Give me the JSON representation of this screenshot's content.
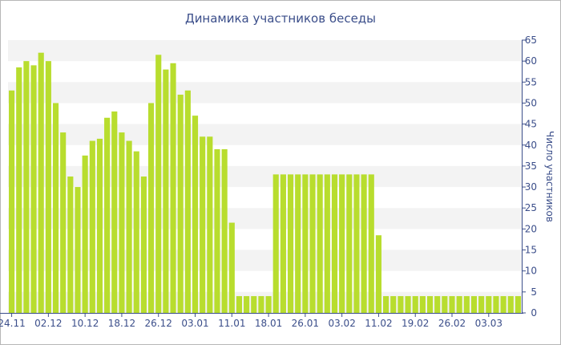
{
  "chart_data": {
    "type": "bar",
    "title": "Динамика участников беседы",
    "xlabel": "",
    "ylabel": "Число участников",
    "ylim": [
      0,
      65
    ],
    "yticks": [
      0,
      5,
      10,
      15,
      20,
      25,
      30,
      35,
      40,
      45,
      50,
      55,
      60,
      65
    ],
    "y_axis_side": "right",
    "grid": "alternating horizontal bands",
    "bar_color": "#b8dd2e",
    "band_color": "#f3f3f3",
    "text_color": "#3b4e8a",
    "x_tick_labels": [
      {
        "index": 0,
        "label": "24.11"
      },
      {
        "index": 5,
        "label": "02.12"
      },
      {
        "index": 10,
        "label": "10.12"
      },
      {
        "index": 15,
        "label": "18.12"
      },
      {
        "index": 20,
        "label": "26.12"
      },
      {
        "index": 25,
        "label": "03.01"
      },
      {
        "index": 30,
        "label": "11.01"
      },
      {
        "index": 35,
        "label": "18.01"
      },
      {
        "index": 40,
        "label": "26.01"
      },
      {
        "index": 45,
        "label": "03.02"
      },
      {
        "index": 50,
        "label": "11.02"
      },
      {
        "index": 55,
        "label": "19.02"
      },
      {
        "index": 60,
        "label": "26.02"
      },
      {
        "index": 65,
        "label": "03.03"
      }
    ],
    "values": [
      53,
      58.5,
      60,
      59,
      62,
      60,
      50,
      43,
      32.5,
      30,
      37.5,
      41,
      41.5,
      46.5,
      48,
      43,
      41,
      38.5,
      32.5,
      50,
      61.5,
      58,
      59.5,
      52,
      53,
      47,
      42,
      42,
      39,
      39,
      21.5,
      4,
      4,
      4,
      4,
      4,
      33,
      33,
      33,
      33,
      33,
      33,
      33,
      33,
      33,
      33,
      33,
      33,
      33,
      33,
      18.5,
      4,
      4,
      4,
      4,
      4,
      4,
      4,
      4,
      4,
      4,
      4,
      4,
      4,
      4,
      4,
      4,
      4,
      4,
      4
    ]
  }
}
